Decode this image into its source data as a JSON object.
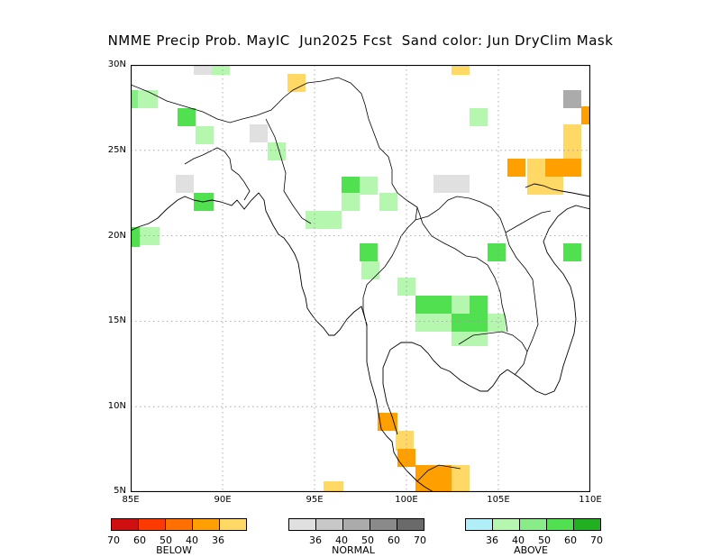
{
  "title": "NMME Precip Prob. MayIC  Jun2025 Fcst  Sand color: Jun DryClim Mask",
  "map": {
    "lon_range": [
      85,
      110
    ],
    "lat_range": [
      5,
      30
    ],
    "grid": true,
    "lat_ticks": [
      "30N",
      "25N",
      "20N",
      "15N",
      "10N",
      "5N"
    ],
    "lon_ticks": [
      "85E",
      "90E",
      "95E",
      "100E",
      "105E",
      "110E"
    ],
    "colors": {
      "below_36": "#ffd866",
      "below_40": "#ffa000",
      "below_50": "#ff7000",
      "below_60": "#ff3a00",
      "below_70": "#d01010",
      "normal_36": "#e0e0e0",
      "normal_40": "#c8c8c8",
      "normal_50": "#ababab",
      "normal_60": "#8a8a8a",
      "normal_70": "#6a6a6a",
      "above_36": "#b0eef8",
      "above_40": "#b6f7b0",
      "above_50": "#88ec88",
      "above_60": "#50e050",
      "above_70": "#20b020",
      "sand": "#ffe890"
    }
  },
  "legend": {
    "below": {
      "caption": "BELOW",
      "labels": [
        "70",
        "60",
        "50",
        "40",
        "36"
      ],
      "colors": [
        "#d01010",
        "#ff3a00",
        "#ff7000",
        "#ffa000",
        "#ffd866"
      ]
    },
    "normal": {
      "caption": "NORMAL",
      "labels": [
        "36",
        "40",
        "50",
        "60",
        "70"
      ],
      "colors": [
        "#e0e0e0",
        "#c8c8c8",
        "#ababab",
        "#8a8a8a",
        "#6a6a6a"
      ]
    },
    "above": {
      "caption": "ABOVE",
      "labels": [
        "36",
        "40",
        "50",
        "60",
        "70"
      ],
      "colors": [
        "#b0eef8",
        "#b6f7b0",
        "#88ec88",
        "#50e050",
        "#20b020"
      ]
    }
  }
}
